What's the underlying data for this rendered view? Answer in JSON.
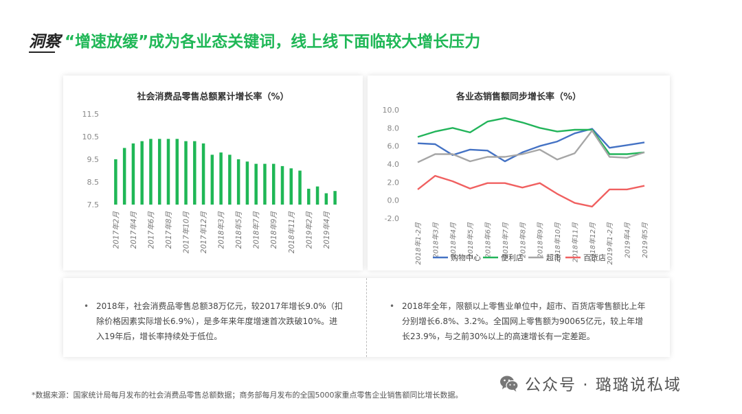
{
  "header": {
    "prefix": "洞察",
    "highlight": "“增速放缓”",
    "rest": "成为各业态关键词，线上线下面临较大增长压力"
  },
  "colors": {
    "accent": "#1fb756",
    "bar": "#1fb756",
    "series_shopping": "#4472c4",
    "series_convenience": "#22b45a",
    "series_super": "#a6a6a6",
    "series_dept": "#f06060"
  },
  "left_chart": {
    "title": "社会消费品零售总额累计增长率（%）"
  },
  "right_chart": {
    "title": "各业态销售额同步增长率（%）"
  },
  "chart_data": [
    {
      "type": "bar",
      "title": "社会消费品零售总额累计增长率（%）",
      "categories": [
        "2017年2月",
        "2017年3月",
        "2017年4月",
        "2017年5月",
        "2017年6月",
        "2017年7月",
        "2017年8月",
        "2017年9月",
        "2017年10月",
        "2017年11月",
        "2017年12月",
        "2018年2月",
        "2018年3月",
        "2018年4月",
        "2018年5月",
        "2018年6月",
        "2018年7月",
        "2018年8月",
        "2018年9月",
        "2018年10月",
        "2018年11月",
        "2018年12月",
        "2019年2月",
        "2019年3月",
        "2019年4月",
        "2019年5月"
      ],
      "tick_labels": [
        "2017年2月",
        "2017年4月",
        "2017年6月",
        "2017年8月",
        "2017年10月",
        "2017年12月",
        "2018年3月",
        "2018年5月",
        "2018年7月",
        "2018年9月",
        "2018年11月",
        "2019年2月",
        "2019年4月"
      ],
      "values": [
        9.5,
        10.0,
        10.2,
        10.3,
        10.4,
        10.4,
        10.4,
        10.4,
        10.3,
        10.3,
        10.2,
        9.7,
        9.8,
        9.7,
        9.5,
        9.4,
        9.3,
        9.3,
        9.3,
        9.2,
        9.1,
        9.0,
        8.2,
        8.3,
        8.0,
        8.1
      ],
      "yticks": [
        "7.5",
        "8.5",
        "9.5",
        "10.5",
        "11.5"
      ],
      "ylim": [
        7.5,
        11.5
      ],
      "grid": false
    },
    {
      "type": "line",
      "title": "各业态销售额同步增长率（%）",
      "categories": [
        "2018年1-2月",
        "2018年3月",
        "2018年4月",
        "2018年5月",
        "2018年6月",
        "2018年7月",
        "2018年8月",
        "2018年9月",
        "2018年10月",
        "2018年11月",
        "2018年12月",
        "2019年1-2月",
        "2019年4月",
        "2019年5月"
      ],
      "tick_labels": [
        "2018年1-2月",
        "2018年3月",
        "2018年4月",
        "2018年5月",
        "2018年6月",
        "2018年7月",
        "2018年8月",
        "2018年9月",
        "2018年10月",
        "2018年11月",
        "2018年12月",
        "2019年1-2月",
        "2019年4月",
        "2019年5月"
      ],
      "yticks": [
        "-2.0",
        "0.0",
        "2.0",
        "4.0",
        "6.0",
        "8.0",
        "10.0"
      ],
      "ylim": [
        -2.0,
        10.0
      ],
      "legend_position": "bottom",
      "series": [
        {
          "name": "购物中心",
          "values": [
            6.3,
            6.2,
            5.0,
            5.6,
            5.5,
            4.3,
            5.3,
            6.0,
            6.5,
            7.4,
            7.9,
            5.8,
            6.1,
            6.4
          ]
        },
        {
          "name": "便利店",
          "values": [
            7.0,
            7.6,
            8.0,
            7.5,
            8.7,
            9.1,
            8.6,
            8.0,
            7.6,
            7.8,
            7.8,
            5.1,
            5.1,
            5.3
          ]
        },
        {
          "name": "超市",
          "values": [
            4.2,
            5.1,
            5.1,
            4.3,
            4.8,
            4.8,
            5.1,
            5.6,
            4.5,
            5.2,
            7.7,
            4.8,
            4.7,
            5.3
          ]
        },
        {
          "name": "百货店",
          "values": [
            1.2,
            2.7,
            2.1,
            1.3,
            1.9,
            1.9,
            1.4,
            1.9,
            0.7,
            -0.3,
            -0.7,
            1.2,
            1.2,
            1.6
          ]
        }
      ]
    }
  ],
  "notes": {
    "bullet": "•",
    "left": "2018年，社会消费品零售总额38万亿元，较2017年增长9.0%（扣除价格因素实际增长6.9%），是多年来年度增速首次跌破10%。进入19年后，增长率持续处于低位。",
    "right": "2018年全年，限额以上零售业单位中，超市、百货店零售额比上年分别增长6.8%、3.2%。全国网上零售额为90065亿元，较上年增长23.9%，与之前30%以上的高速增长有一定差距。"
  },
  "source": "*数据来源：国家统计局每月发布的社会消费品零售总额数据；商务部每月发布的全国5000家重点零售企业销售额同比增长数据。",
  "watermark": {
    "icon": "wechat-icon",
    "text": "公众号 · 璐璐说私域"
  }
}
